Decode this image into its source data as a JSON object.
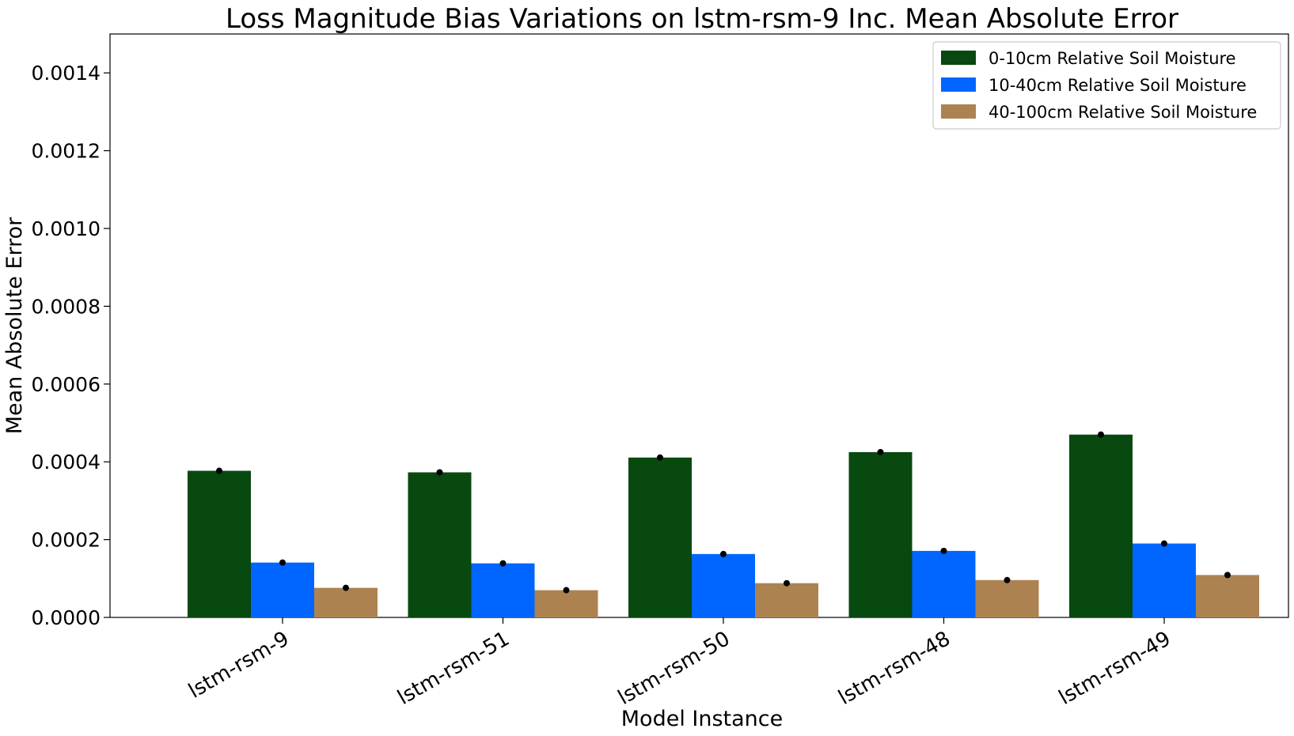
{
  "chart_data": {
    "type": "bar",
    "title": "Loss Magnitude Bias Variations on lstm-rsm-9 Inc. Mean Absolute Error",
    "xlabel": "Model Instance",
    "ylabel": "Mean Absolute Error",
    "categories": [
      "lstm-rsm-9",
      "lstm-rsm-51",
      "lstm-rsm-50",
      "lstm-rsm-48",
      "lstm-rsm-49"
    ],
    "series": [
      {
        "name": "0-10cm Relative Soil Moisture",
        "color": "#08490f",
        "values": [
          0.000377,
          0.000373,
          0.000411,
          0.000425,
          0.00047
        ]
      },
      {
        "name": "10-40cm Relative Soil Moisture",
        "color": "#0066ff",
        "values": [
          0.000141,
          0.000139,
          0.000163,
          0.000171,
          0.00019
        ]
      },
      {
        "name": "40-100cm Relative Soil Moisture",
        "color": "#ad8251",
        "values": [
          7.6e-05,
          7e-05,
          8.8e-05,
          9.6e-05,
          0.000109
        ]
      }
    ],
    "error_markers": "black-dot",
    "ylim": [
      0,
      0.0015
    ],
    "yticks": [
      "0.0000",
      "0.0002",
      "0.0004",
      "0.0006",
      "0.0008",
      "0.0010",
      "0.0012",
      "0.0014"
    ],
    "ytick_values": [
      0,
      0.0002,
      0.0004,
      0.0006,
      0.0008,
      0.001,
      0.0012,
      0.0014
    ],
    "xtick_rotation": 30,
    "legend_position": "top-right",
    "grid": false
  }
}
